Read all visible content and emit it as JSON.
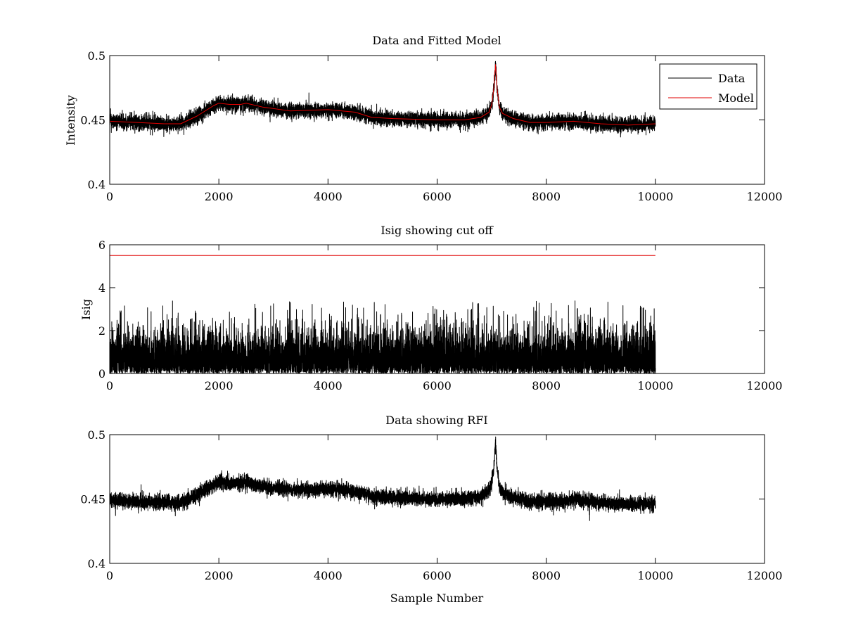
{
  "colors": {
    "data": "#000000",
    "model": "#e00000",
    "cutoff": "#e00000",
    "axes": "#000000",
    "background": "#ffffff"
  },
  "chart_data": [
    {
      "type": "line",
      "title": "Data and Fitted Model",
      "xlabel": "",
      "ylabel": "Intensity",
      "xlim": [
        0,
        12000
      ],
      "ylim": [
        0.4,
        0.5
      ],
      "xticks": [
        "0",
        "2000",
        "4000",
        "6000",
        "8000",
        "10000",
        "12000"
      ],
      "yticks": [
        "0.4",
        "0.45",
        "0.5"
      ],
      "legend": {
        "position": "top-right",
        "entries": [
          "Data",
          "Model"
        ]
      },
      "series": [
        {
          "name": "Data",
          "kind": "noisy",
          "baseline": {
            "x": [
              0,
              500,
              1000,
              1300,
              1600,
              1900,
              2000,
              2200,
              2500,
              2800,
              3300,
              4000,
              4500,
              4800,
              5200,
              6000,
              6500,
              6800,
              6950,
              7000,
              7040,
              7070,
              7100,
              7140,
              7200,
              7400,
              7700,
              8000,
              8500,
              9000,
              9500,
              10000
            ],
            "y": [
              0.449,
              0.448,
              0.447,
              0.447,
              0.453,
              0.461,
              0.463,
              0.462,
              0.463,
              0.46,
              0.457,
              0.458,
              0.456,
              0.452,
              0.451,
              0.45,
              0.45,
              0.452,
              0.456,
              0.462,
              0.475,
              0.493,
              0.474,
              0.46,
              0.455,
              0.451,
              0.448,
              0.448,
              0.449,
              0.447,
              0.446,
              0.447
            ]
          },
          "noise_amplitude": 0.005,
          "n_points": 10000
        },
        {
          "name": "Model",
          "kind": "smooth",
          "x": [
            0,
            500,
            1000,
            1300,
            1600,
            1900,
            2000,
            2200,
            2400,
            2500,
            2800,
            3300,
            4000,
            4500,
            4800,
            5200,
            6000,
            6500,
            6800,
            6950,
            7000,
            7040,
            7070,
            7100,
            7140,
            7200,
            7400,
            7700,
            8000,
            8500,
            9000,
            9500,
            10000
          ],
          "y": [
            0.449,
            0.448,
            0.447,
            0.447,
            0.453,
            0.461,
            0.463,
            0.462,
            0.462,
            0.463,
            0.46,
            0.457,
            0.458,
            0.456,
            0.452,
            0.451,
            0.45,
            0.45,
            0.452,
            0.456,
            0.462,
            0.475,
            0.493,
            0.474,
            0.46,
            0.455,
            0.451,
            0.448,
            0.448,
            0.449,
            0.447,
            0.446,
            0.447
          ]
        }
      ]
    },
    {
      "type": "line",
      "title": "Isig showing cut off",
      "xlabel": "",
      "ylabel": "Isig",
      "xlim": [
        0,
        12000
      ],
      "ylim": [
        0,
        6
      ],
      "xticks": [
        "0",
        "2000",
        "4000",
        "6000",
        "8000",
        "10000",
        "12000"
      ],
      "yticks": [
        "0",
        "2",
        "4",
        "6"
      ],
      "series": [
        {
          "kind": "absnoise",
          "x_range": [
            0,
            10000
          ],
          "typical_max": 2.0,
          "peak_max": 3.4,
          "n_points": 10000
        },
        {
          "kind": "cutoff",
          "x": [
            0,
            10000
          ],
          "y": [
            5.5,
            5.5
          ]
        }
      ]
    },
    {
      "type": "line",
      "title": "Data showing RFI",
      "xlabel": "Sample Number",
      "ylabel": "",
      "xlim": [
        0,
        12000
      ],
      "ylim": [
        0.4,
        0.5
      ],
      "xticks": [
        "0",
        "2000",
        "4000",
        "6000",
        "8000",
        "10000",
        "12000"
      ],
      "yticks": [
        "0.4",
        "0.45",
        "0.5"
      ],
      "series": [
        {
          "kind": "noisy",
          "baseline": {
            "x": [
              0,
              500,
              1000,
              1300,
              1600,
              1900,
              2000,
              2200,
              2500,
              2800,
              3300,
              4000,
              4500,
              4800,
              5200,
              6000,
              6500,
              6800,
              6950,
              7000,
              7040,
              7070,
              7100,
              7140,
              7200,
              7400,
              7700,
              8000,
              8500,
              9000,
              9500,
              10000
            ],
            "y": [
              0.449,
              0.448,
              0.447,
              0.447,
              0.453,
              0.461,
              0.463,
              0.462,
              0.463,
              0.46,
              0.457,
              0.458,
              0.456,
              0.452,
              0.451,
              0.45,
              0.45,
              0.452,
              0.456,
              0.462,
              0.475,
              0.493,
              0.474,
              0.46,
              0.455,
              0.451,
              0.448,
              0.448,
              0.449,
              0.447,
              0.446,
              0.447
            ]
          },
          "noise_amplitude": 0.005,
          "n_points": 10000
        }
      ]
    }
  ]
}
